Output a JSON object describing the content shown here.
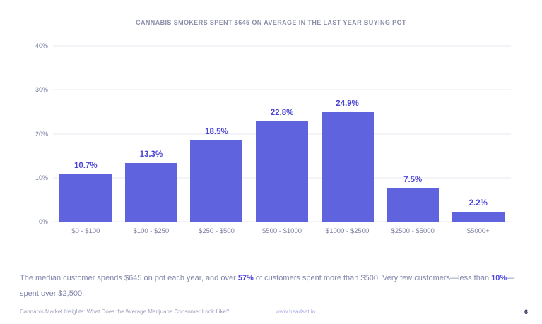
{
  "page": {
    "footer": {
      "source": "Cannabis Market Insights: What Does the Average Marijuana Consumer Look Like?",
      "url": "www.headset.io",
      "page_number": "6"
    },
    "caption": {
      "part1": "The median customer spends $645 on pot each year, and over ",
      "accent1": "57%",
      "part2": " of customers spent more than $500. Very few customers—less than ",
      "accent2": "10%",
      "part3": "—spent over $2,500."
    }
  },
  "chart_data": {
    "type": "bar",
    "title": "CANNABIS SMOKERS SPENT $645 ON AVERAGE IN THE LAST YEAR BUYING POT",
    "categories": [
      "$0 - $100",
      "$100 - $250",
      "$250 - $500",
      "$500 - $1000",
      "$1000 - $2500",
      "$2500 - $5000",
      "$5000+"
    ],
    "values": [
      10.7,
      13.3,
      18.5,
      22.8,
      24.9,
      7.5,
      2.2
    ],
    "value_labels": [
      "10.7%",
      "13.3%",
      "18.5%",
      "22.8%",
      "24.9%",
      "7.5%",
      "2.2%"
    ],
    "xlabel": "",
    "ylabel": "",
    "ylim": [
      0,
      40
    ],
    "yticks": [
      "0%",
      "10%",
      "20%",
      "30%",
      "40%"
    ],
    "grid": true,
    "legend": "none",
    "bar_color": "#6063de",
    "value_label_color": "#4a45d6",
    "axis_label_color": "#7d80a2",
    "title_color": "#8b8ea9",
    "accent_color": "#4b46e0"
  }
}
